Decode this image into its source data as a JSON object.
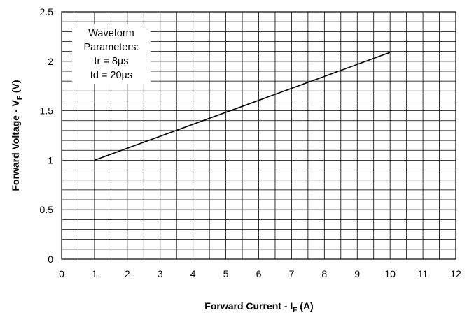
{
  "chart_data": {
    "type": "line",
    "title": "",
    "xlabel": {
      "main": "Forward Current - I",
      "sub": "F",
      "unit": " (A)"
    },
    "ylabel": {
      "main": "Forward Voltage - V",
      "sub": "F",
      "unit": " (V)"
    },
    "xlim": [
      0,
      12
    ],
    "ylim": [
      0,
      2.5
    ],
    "x_ticks": [
      0,
      1,
      2,
      3,
      4,
      5,
      6,
      7,
      8,
      9,
      10,
      11,
      12
    ],
    "y_ticks": [
      0,
      0.5,
      1,
      1.5,
      2,
      2.5
    ],
    "y_tick_labels": [
      "0",
      "0.5",
      "1",
      "1.5",
      "2",
      "2.5"
    ],
    "grid": {
      "x_minor_step": 0.5,
      "y_minor_step": 0.1,
      "shown": true
    },
    "annotation": {
      "lines": [
        "Waveform",
        "Parameters:",
        "tr = 8µs",
        "td = 20µs"
      ]
    },
    "series": [
      {
        "x": [
          1,
          10
        ],
        "y": [
          1.0,
          2.09
        ]
      }
    ],
    "colors": {
      "line": "#000000",
      "grid": "#000000"
    }
  }
}
